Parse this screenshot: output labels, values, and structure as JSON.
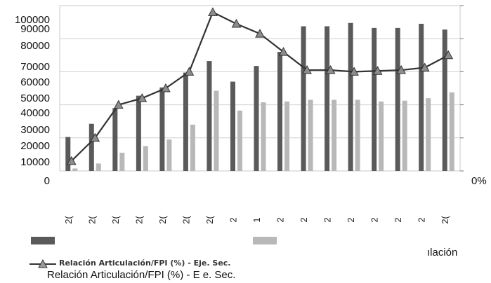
{
  "chart_data": {
    "type": "bar",
    "y_tick_labels": [
      "100000",
      "90000",
      "80000",
      "70000",
      "60000",
      "50000",
      "40000",
      "30000",
      "20000",
      "10000",
      "0"
    ],
    "x_tick_labels": [
      "2(",
      "2(",
      "2(",
      "2(",
      "2(",
      "2(",
      "2(",
      "2",
      "1",
      "2",
      "2",
      "2",
      "2",
      "2",
      "2",
      "2",
      "2("
    ],
    "secondary_axis_fragment": "0%",
    "series": [
      {
        "name": "",
        "color": "#5a5a5a",
        "values": [
          20500,
          28500,
          38000,
          45500,
          50500,
          59500,
          66500,
          54000,
          63500,
          72000,
          87500,
          87500,
          89500,
          86500,
          86500,
          89000,
          85500
        ]
      },
      {
        "name": "",
        "color": "#b8b8b8",
        "values": [
          1500,
          4500,
          11000,
          15000,
          19000,
          28000,
          48500,
          36500,
          41500,
          42000,
          43000,
          43000,
          43000,
          42000,
          42500,
          44000,
          47500
        ]
      },
      {
        "name": "Relación Articulación/FPI (%) - Eje. Sec.",
        "color": "#333333",
        "axis": "secondary",
        "values": [
          6,
          20,
          40,
          44,
          50,
          60,
          96,
          89,
          83,
          72,
          61,
          61,
          60,
          60.5,
          61,
          62.5,
          70
        ]
      }
    ],
    "ylim": [
      0,
      100000
    ],
    "grid": true
  },
  "legend": {
    "line_label": "Relación Articulación/FPI (%) - Eje. Sec.",
    "line_label_dup": "Relación Articulación/FPI (%) - E e. Sec.",
    "fragment": "ılación"
  }
}
